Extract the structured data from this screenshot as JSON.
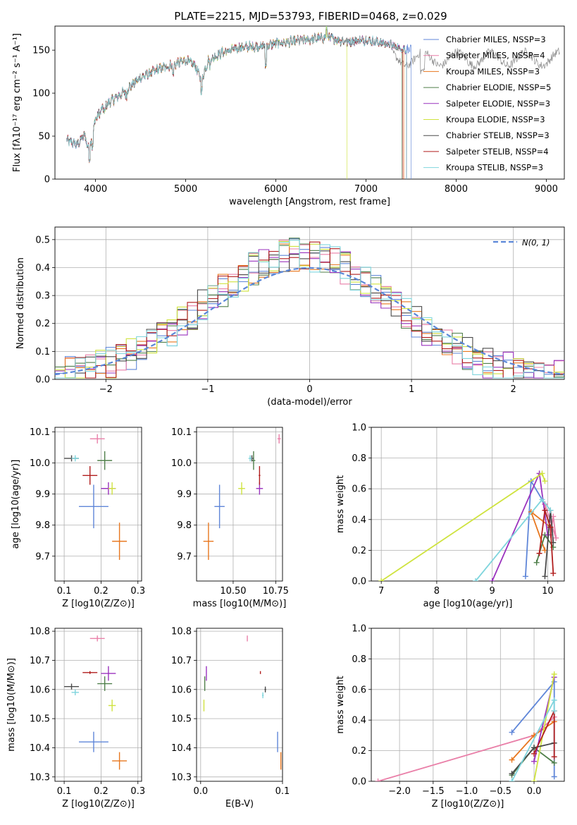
{
  "page": {
    "title": "PLATE=2215, MJD=53793, FIBERID=0468, z=0.029"
  },
  "colors": {
    "s0": "#5f86d8",
    "s1": "#e97fa8",
    "s2": "#e8771f",
    "s3": "#4f7f4a",
    "s4": "#9a32be",
    "s5": "#cfe33f",
    "s6": "#4a4a4a",
    "s7": "#b11e1e",
    "s8": "#7fd5dd",
    "gauss": "#5b87d8"
  },
  "chart_data": [
    {
      "id": "spectrum",
      "type": "line",
      "xlabel": "wavelength [Angstrom, rest frame]",
      "ylabel": "Flux [fλ10⁻¹⁷ erg cm⁻² s⁻¹ A⁻¹]",
      "xlim": [
        3550,
        9200
      ],
      "ylim": [
        0,
        178
      ],
      "xticks": [
        "4000",
        "5000",
        "6000",
        "7000",
        "8000",
        "9000"
      ],
      "yticks": [
        "0",
        "50",
        "100",
        "150"
      ],
      "legend": [
        "Chabrier MILES, NSSP=3",
        "Salpeter MILES, NSSP=4",
        "Kroupa MILES, NSSP=3",
        "Chabrier ELODIE, NSSP=5",
        "Salpeter ELODIE, NSSP=3",
        "Kroupa ELODIE, NSSP=3",
        "Chabrier STELIB, NSSP=3",
        "Salpeter STELIB, NSSP=4",
        "Kroupa STELIB, NSSP=3"
      ],
      "continuum": [
        [
          3680,
          45
        ],
        [
          3800,
          40
        ],
        [
          3880,
          52
        ],
        [
          3920,
          35
        ],
        [
          3960,
          48
        ],
        [
          4000,
          70
        ],
        [
          4100,
          85
        ],
        [
          4300,
          100
        ],
        [
          4500,
          118
        ],
        [
          4700,
          128
        ],
        [
          4860,
          133
        ],
        [
          5000,
          138
        ],
        [
          5100,
          133
        ],
        [
          5175,
          115
        ],
        [
          5250,
          138
        ],
        [
          5400,
          147
        ],
        [
          5600,
          153
        ],
        [
          5890,
          155
        ],
        [
          6000,
          158
        ],
        [
          6200,
          160
        ],
        [
          6563,
          165
        ],
        [
          6800,
          160
        ],
        [
          7000,
          162
        ],
        [
          7200,
          158
        ],
        [
          7400,
          152
        ],
        [
          7500,
          150
        ]
      ],
      "extent": [
        [
          3680,
          7500
        ],
        [
          3680,
          7450
        ],
        [
          3680,
          7420
        ],
        [
          3680,
          7400
        ],
        [
          3680,
          7450
        ],
        [
          3930,
          6790
        ],
        [
          3680,
          7450
        ],
        [
          3680,
          7410
        ],
        [
          3680,
          7450
        ]
      ],
      "grey_end": 9150
    },
    {
      "id": "residuals",
      "type": "step",
      "xlabel": "(data-model)/error",
      "ylabel": "Normed distribution",
      "xlim": [
        -2.5,
        2.5
      ],
      "ylim": [
        0,
        0.545
      ],
      "xticks": [
        "−2",
        "−1",
        "0",
        "1",
        "2"
      ],
      "yticks": [
        "0.0",
        "0.1",
        "0.2",
        "0.3",
        "0.4",
        "0.5"
      ],
      "legend": [
        "N(0, 1)"
      ],
      "bin_width": 0.1
    },
    {
      "id": "age_vs_Z",
      "type": "scatter",
      "xlabel": "Z [log10(Z/Z⊙)]",
      "ylabel": "age  [log10(age/yr)]",
      "xlim": [
        0.075,
        0.31
      ],
      "ylim": [
        9.62,
        10.115
      ],
      "xticks": [
        "0.1",
        "0.2",
        "0.3"
      ],
      "yticks": [
        "9.7",
        "9.8",
        "9.9",
        "10.0",
        "10.1"
      ],
      "points": [
        {
          "s": 0,
          "x": 0.18,
          "y": 9.86,
          "dx": 0.04,
          "dy": 0.07
        },
        {
          "s": 1,
          "x": 0.19,
          "y": 10.078,
          "dx": 0.02,
          "dy": 0.015
        },
        {
          "s": 2,
          "x": 0.25,
          "y": 9.748,
          "dx": 0.02,
          "dy": 0.06
        },
        {
          "s": 3,
          "x": 0.21,
          "y": 10.008,
          "dx": 0.02,
          "dy": 0.03
        },
        {
          "s": 4,
          "x": 0.22,
          "y": 9.918,
          "dx": 0.02,
          "dy": 0.02
        },
        {
          "s": 5,
          "x": 0.23,
          "y": 9.918,
          "dx": 0.01,
          "dy": 0.02
        },
        {
          "s": 6,
          "x": 0.12,
          "y": 10.015,
          "dx": 0.02,
          "dy": 0.01
        },
        {
          "s": 7,
          "x": 0.17,
          "y": 9.96,
          "dx": 0.02,
          "dy": 0.03
        },
        {
          "s": 8,
          "x": 0.13,
          "y": 10.015,
          "dx": 0.01,
          "dy": 0.01
        }
      ]
    },
    {
      "id": "age_vs_mass",
      "type": "scatter",
      "xlabel": "mass [log10(M/M⊙)]",
      "ylabel": "",
      "xlim": [
        10.285,
        10.79
      ],
      "ylim": [
        9.62,
        10.115
      ],
      "xticks": [
        "10.50",
        "10.75"
      ],
      "yticks": [
        "9.7",
        "9.8",
        "9.9",
        "10.0",
        "10.1"
      ],
      "points": [
        {
          "s": 0,
          "x": 10.42,
          "y": 9.86,
          "dx": 0.03,
          "dy": 0.07
        },
        {
          "s": 1,
          "x": 10.77,
          "y": 10.078,
          "dx": 0.01,
          "dy": 0.015
        },
        {
          "s": 2,
          "x": 10.355,
          "y": 9.748,
          "dx": 0.03,
          "dy": 0.06
        },
        {
          "s": 3,
          "x": 10.62,
          "y": 10.008,
          "dx": 0.01,
          "dy": 0.03
        },
        {
          "s": 4,
          "x": 10.655,
          "y": 9.918,
          "dx": 0.02,
          "dy": 0.02
        },
        {
          "s": 5,
          "x": 10.55,
          "y": 9.918,
          "dx": 0.02,
          "dy": 0.02
        },
        {
          "s": 6,
          "x": 10.61,
          "y": 10.015,
          "dx": 0.01,
          "dy": 0.01
        },
        {
          "s": 7,
          "x": 10.655,
          "y": 9.96,
          "dx": 0.005,
          "dy": 0.03
        },
        {
          "s": 8,
          "x": 10.6,
          "y": 10.015,
          "dx": 0.01,
          "dy": 0.01
        }
      ]
    },
    {
      "id": "weight_vs_age",
      "type": "line",
      "xlabel": "age  [log10(age/yr)]",
      "ylabel": "mass weight",
      "xlim": [
        6.82,
        10.3
      ],
      "ylim": [
        0,
        1.0
      ],
      "xticks": [
        "7",
        "8",
        "9",
        "10"
      ],
      "yticks": [
        "0.0",
        "0.2",
        "0.4",
        "0.6",
        "0.8",
        "1.0"
      ],
      "series": [
        {
          "s": 0,
          "x": [
            9.6,
            9.7,
            9.95
          ],
          "y": [
            0.03,
            0.65,
            0.5
          ]
        },
        {
          "s": 1,
          "x": [
            10.05,
            10.1,
            10.15,
            9.95
          ],
          "y": [
            0.3,
            0.42,
            0.28,
            0.5
          ]
        },
        {
          "s": 2,
          "x": [
            9.95,
            9.7,
            10.05
          ],
          "y": [
            0.2,
            0.45,
            0.35
          ]
        },
        {
          "s": 3,
          "x": [
            9.8,
            9.95,
            10.1
          ],
          "y": [
            0.12,
            0.3,
            0.22
          ]
        },
        {
          "s": 4,
          "x": [
            9.0,
            9.85,
            10.0
          ],
          "y": [
            0.0,
            0.7,
            0.3
          ]
        },
        {
          "s": 5,
          "x": [
            7.0,
            9.9,
            9.95
          ],
          "y": [
            0.0,
            0.7,
            0.65
          ]
        },
        {
          "s": 6,
          "x": [
            9.95,
            10.05,
            10.1
          ],
          "y": [
            0.03,
            0.46,
            0.25
          ]
        },
        {
          "s": 7,
          "x": [
            9.85,
            9.95,
            10.05,
            10.1
          ],
          "y": [
            0.18,
            0.46,
            0.35,
            0.05
          ]
        },
        {
          "s": 8,
          "x": [
            8.7,
            9.9,
            10.05
          ],
          "y": [
            0.0,
            0.53,
            0.46
          ]
        }
      ]
    },
    {
      "id": "mass_vs_Z",
      "type": "scatter",
      "xlabel": "Z [log10(Z/Z⊙)]",
      "ylabel": "mass [log10(M/M⊙)]",
      "xlim": [
        0.075,
        0.31
      ],
      "ylim": [
        10.285,
        10.81
      ],
      "xticks": [
        "0.1",
        "0.2",
        "0.3"
      ],
      "yticks": [
        "10.3",
        "10.4",
        "10.5",
        "10.6",
        "10.7",
        "10.8"
      ],
      "points": [
        {
          "s": 0,
          "x": 0.18,
          "y": 10.42,
          "dx": 0.04,
          "dy": 0.035
        },
        {
          "s": 1,
          "x": 0.19,
          "y": 10.775,
          "dx": 0.02,
          "dy": 0.01
        },
        {
          "s": 2,
          "x": 0.25,
          "y": 10.355,
          "dx": 0.02,
          "dy": 0.03
        },
        {
          "s": 3,
          "x": 0.21,
          "y": 10.62,
          "dx": 0.02,
          "dy": 0.025
        },
        {
          "s": 4,
          "x": 0.22,
          "y": 10.655,
          "dx": 0.02,
          "dy": 0.025
        },
        {
          "s": 5,
          "x": 0.23,
          "y": 10.545,
          "dx": 0.01,
          "dy": 0.02
        },
        {
          "s": 6,
          "x": 0.12,
          "y": 10.61,
          "dx": 0.02,
          "dy": 0.01
        },
        {
          "s": 7,
          "x": 0.17,
          "y": 10.658,
          "dx": 0.02,
          "dy": 0.005
        },
        {
          "s": 8,
          "x": 0.13,
          "y": 10.59,
          "dx": 0.01,
          "dy": 0.01
        }
      ]
    },
    {
      "id": "mass_vs_EBV",
      "type": "scatter",
      "xlabel": "E(B-V)",
      "ylabel": "",
      "xlim": [
        -0.005,
        0.1
      ],
      "ylim": [
        10.285,
        10.81
      ],
      "xticks": [
        "0.0",
        "0.1"
      ],
      "yticks": [
        "10.3",
        "10.4",
        "10.5",
        "10.6",
        "10.7",
        "10.8"
      ],
      "points": [
        {
          "s": 0,
          "x": 0.094,
          "y": 10.42,
          "dx": 0,
          "dy": 0.035
        },
        {
          "s": 1,
          "x": 0.057,
          "y": 10.775,
          "dx": 0,
          "dy": 0.01
        },
        {
          "s": 2,
          "x": 0.098,
          "y": 10.355,
          "dx": 0,
          "dy": 0.03
        },
        {
          "s": 3,
          "x": 0.005,
          "y": 10.62,
          "dx": 0,
          "dy": 0.025
        },
        {
          "s": 4,
          "x": 0.007,
          "y": 10.655,
          "dx": 0,
          "dy": 0.025
        },
        {
          "s": 5,
          "x": 0.004,
          "y": 10.545,
          "dx": 0,
          "dy": 0.02
        },
        {
          "s": 6,
          "x": 0.079,
          "y": 10.6,
          "dx": 0.001,
          "dy": 0.01
        },
        {
          "s": 7,
          "x": 0.073,
          "y": 10.658,
          "dx": 0,
          "dy": 0.005
        },
        {
          "s": 8,
          "x": 0.076,
          "y": 10.58,
          "dx": 0.001,
          "dy": 0.01
        }
      ]
    },
    {
      "id": "weight_vs_Z",
      "type": "line",
      "xlabel": "Z [log10(Z/Z⊙)]",
      "ylabel": "mass weight",
      "xlim": [
        -2.42,
        0.45
      ],
      "ylim": [
        0,
        1.0
      ],
      "xticks": [
        "−2.0",
        "−1.5",
        "−1.0",
        "−0.5",
        "0.0"
      ],
      "yticks": [
        "0.0",
        "0.2",
        "0.4",
        "0.6",
        "0.8",
        "1.0"
      ],
      "series": [
        {
          "s": 0,
          "x": [
            -0.33,
            0.3,
            0.3
          ],
          "y": [
            0.32,
            0.65,
            0.03
          ]
        },
        {
          "s": 1,
          "x": [
            -2.32,
            0.0,
            0.3
          ],
          "y": [
            0.0,
            0.3,
            0.42
          ]
        },
        {
          "s": 2,
          "x": [
            -0.33,
            0.0,
            0.3
          ],
          "y": [
            0.14,
            0.3,
            0.39
          ]
        },
        {
          "s": 3,
          "x": [
            -0.33,
            0.0,
            0.3
          ],
          "y": [
            0.04,
            0.22,
            0.12
          ]
        },
        {
          "s": 4,
          "x": [
            0.0,
            0.3
          ],
          "y": [
            0.13,
            0.68
          ]
        },
        {
          "s": 5,
          "x": [
            0.0,
            0.3
          ],
          "y": [
            0.0,
            0.7
          ]
        },
        {
          "s": 6,
          "x": [
            -0.33,
            0.0,
            0.3
          ],
          "y": [
            0.05,
            0.22,
            0.25
          ]
        },
        {
          "s": 7,
          "x": [
            0.0,
            0.3,
            0.3
          ],
          "y": [
            0.18,
            0.46,
            0.16
          ]
        },
        {
          "s": 8,
          "x": [
            -0.33,
            0.3,
            0.3
          ],
          "y": [
            0.0,
            0.53,
            0.46
          ]
        }
      ]
    }
  ]
}
